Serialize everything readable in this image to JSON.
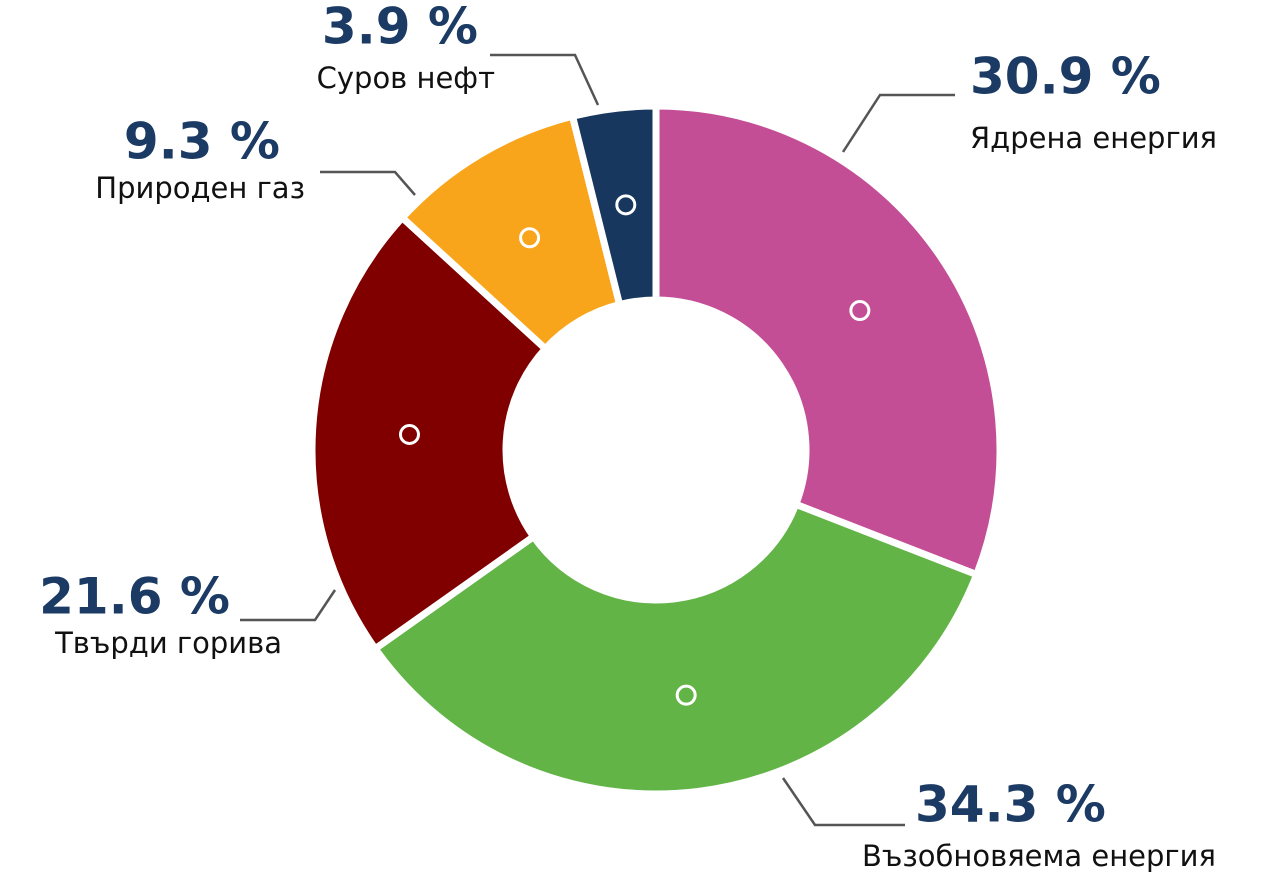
{
  "chart_data": {
    "type": "donut",
    "categories": [
      "Ядрена енергия",
      "Възобновяема енергия",
      "Твърди горива",
      "Природен газ",
      "Суров нефт"
    ],
    "values": [
      30.9,
      34.3,
      21.6,
      9.3,
      3.9
    ],
    "value_labels": [
      "30.9 %",
      "34.3 %",
      "21.6 %",
      "9.3 %",
      "3.9 %"
    ],
    "colors": [
      "#c44e96",
      "#62b446",
      "#800000",
      "#f9a51b",
      "#17375e"
    ]
  }
}
